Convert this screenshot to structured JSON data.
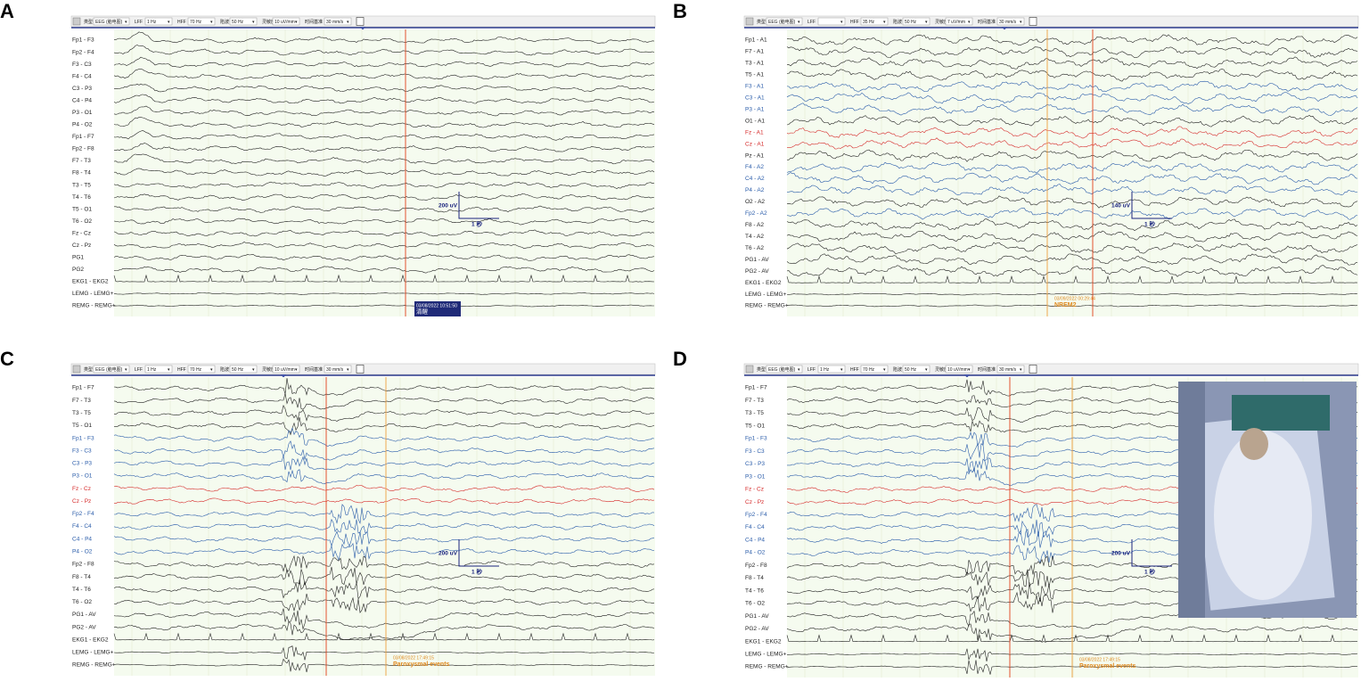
{
  "panels": [
    {
      "letter": "A",
      "toolbar": [
        {
          "label": "类型",
          "value": "EEG (脑电图)"
        },
        {
          "label": "LFF",
          "value": "1 Hz"
        },
        {
          "label": "HFF",
          "value": "70 Hz"
        },
        {
          "label": "陷波",
          "value": "50 Hz"
        },
        {
          "label": "灵敏度",
          "value": "10 uV/mm"
        },
        {
          "label": "时间基准",
          "value": "30 mm/s"
        }
      ],
      "channels": [
        {
          "label": "Fp1 - F3",
          "color": "#222"
        },
        {
          "label": "Fp2 - F4",
          "color": "#222"
        },
        {
          "label": "F3 - C3",
          "color": "#222"
        },
        {
          "label": "F4 - C4",
          "color": "#222"
        },
        {
          "label": "C3 - P3",
          "color": "#222"
        },
        {
          "label": "C4 - P4",
          "color": "#222"
        },
        {
          "label": "P3 - O1",
          "color": "#222"
        },
        {
          "label": "P4 - O2",
          "color": "#222"
        },
        {
          "label": "Fp1 - F7",
          "color": "#222"
        },
        {
          "label": "Fp2 - F8",
          "color": "#222"
        },
        {
          "label": "F7 - T3",
          "color": "#222"
        },
        {
          "label": "F8 - T4",
          "color": "#222"
        },
        {
          "label": "T3 - T5",
          "color": "#222"
        },
        {
          "label": "T4 - T6",
          "color": "#222"
        },
        {
          "label": "T5 - O1",
          "color": "#222"
        },
        {
          "label": "T6 - O2",
          "color": "#222"
        },
        {
          "label": "Fz - Cz",
          "color": "#222"
        },
        {
          "label": "Cz - Pz",
          "color": "#222"
        },
        {
          "label": "PG1",
          "color": "#222"
        },
        {
          "label": "PG2",
          "color": "#222"
        },
        {
          "label": "EKG1 - EKG2",
          "color": "#222"
        },
        {
          "label": "LEMG - LEMG+",
          "color": "#222"
        },
        {
          "label": "REMG - REMG+",
          "color": "#222"
        }
      ],
      "scale": {
        "amplitude": "200 uV",
        "time": "1 秒"
      },
      "event": {
        "time": "03/08/2022 10:51:50",
        "label": "清醒",
        "style": "box"
      }
    },
    {
      "letter": "B",
      "toolbar": [
        {
          "label": "类型",
          "value": "EEG (脑电图)"
        },
        {
          "label": "LFF"
        },
        {
          "label": "HFF",
          "value": "35 Hz"
        },
        {
          "label": "陷波",
          "value": "50 Hz"
        },
        {
          "label": "灵敏度",
          "value": "7 uV/mm"
        },
        {
          "label": "时间基准",
          "value": "30 mm/s"
        }
      ],
      "channels": [
        {
          "label": "Fp1 - A1",
          "color": "#222"
        },
        {
          "label": "F7 - A1",
          "color": "#222"
        },
        {
          "label": "T3 - A1",
          "color": "#222"
        },
        {
          "label": "T5 - A1",
          "color": "#222"
        },
        {
          "label": "F3 - A1",
          "color": "#2a5caa"
        },
        {
          "label": "C3 - A1",
          "color": "#2a5caa"
        },
        {
          "label": "P3 - A1",
          "color": "#2a5caa"
        },
        {
          "label": "O1 - A1",
          "color": "#222"
        },
        {
          "label": "Fz - A1",
          "color": "#d62b2b"
        },
        {
          "label": "Cz - A1",
          "color": "#d62b2b"
        },
        {
          "label": "Pz - A1",
          "color": "#222"
        },
        {
          "label": "F4 - A2",
          "color": "#2a5caa"
        },
        {
          "label": "C4 - A2",
          "color": "#2a5caa"
        },
        {
          "label": "P4 - A2",
          "color": "#2a5caa"
        },
        {
          "label": "O2 - A2",
          "color": "#222"
        },
        {
          "label": "Fp2 - A2",
          "color": "#2a5caa"
        },
        {
          "label": "F8 - A2",
          "color": "#222"
        },
        {
          "label": "T4 - A2",
          "color": "#222"
        },
        {
          "label": "T6 - A2",
          "color": "#222"
        },
        {
          "label": "PG1 - AV",
          "color": "#222"
        },
        {
          "label": "PG2 - AV",
          "color": "#222"
        },
        {
          "label": "EKG1 - EKG2",
          "color": "#222"
        },
        {
          "label": "LEMG - LEMG+",
          "color": "#222"
        },
        {
          "label": "REMG - REMG+",
          "color": "#222"
        }
      ],
      "scale": {
        "amplitude": "140 uV",
        "time": "1 秒"
      },
      "event": {
        "time": "03/09/2022 00:29:44",
        "label": "NREM2",
        "style": "text"
      }
    },
    {
      "letter": "C",
      "toolbar": [
        {
          "label": "类型",
          "value": "EEG (脑电图)"
        },
        {
          "label": "LFF",
          "value": "1 Hz"
        },
        {
          "label": "HFF",
          "value": "70 Hz"
        },
        {
          "label": "陷波",
          "value": "50 Hz"
        },
        {
          "label": "灵敏度",
          "value": "10 uV/mm"
        },
        {
          "label": "时间基准",
          "value": "30 mm/s"
        }
      ],
      "channels": [
        {
          "label": "Fp1 - F7",
          "color": "#222"
        },
        {
          "label": "F7 - T3",
          "color": "#222"
        },
        {
          "label": "T3 - T5",
          "color": "#222"
        },
        {
          "label": "T5 - O1",
          "color": "#222"
        },
        {
          "label": "Fp1 - F3",
          "color": "#2a5caa"
        },
        {
          "label": "F3 - C3",
          "color": "#2a5caa"
        },
        {
          "label": "C3 - P3",
          "color": "#2a5caa"
        },
        {
          "label": "P3 - O1",
          "color": "#2a5caa"
        },
        {
          "label": "Fz - Cz",
          "color": "#d62b2b"
        },
        {
          "label": "Cz - Pz",
          "color": "#d62b2b"
        },
        {
          "label": "Fp2 - F4",
          "color": "#2a5caa"
        },
        {
          "label": "F4 - C4",
          "color": "#2a5caa"
        },
        {
          "label": "C4 - P4",
          "color": "#2a5caa"
        },
        {
          "label": "P4 - O2",
          "color": "#2a5caa"
        },
        {
          "label": "Fp2 - F8",
          "color": "#222"
        },
        {
          "label": "F8 - T4",
          "color": "#222"
        },
        {
          "label": "T4 - T6",
          "color": "#222"
        },
        {
          "label": "T6 - O2",
          "color": "#222"
        },
        {
          "label": "PG1 - AV",
          "color": "#222"
        },
        {
          "label": "PG2 - AV",
          "color": "#222"
        },
        {
          "label": "EKG1 - EKG2",
          "color": "#222"
        },
        {
          "label": "LEMG - LEMG+",
          "color": "#222"
        },
        {
          "label": "REMG - REMG+",
          "color": "#222"
        }
      ],
      "scale": {
        "amplitude": "200 uV",
        "time": "1 秒"
      },
      "event": {
        "time": "03/08/2022 17:49:15",
        "label": "Paroxysmal events",
        "style": "text"
      }
    },
    {
      "letter": "D",
      "toolbar": [
        {
          "label": "类型",
          "value": "EEG (脑电图)"
        },
        {
          "label": "LFF",
          "value": "1 Hz"
        },
        {
          "label": "HFF",
          "value": "70 Hz"
        },
        {
          "label": "陷波",
          "value": "50 Hz"
        },
        {
          "label": "灵敏度",
          "value": "10 uV/mm"
        },
        {
          "label": "时间基准",
          "value": "30 mm/s"
        }
      ],
      "channels": [
        {
          "label": "Fp1 - F7",
          "color": "#222"
        },
        {
          "label": "F7 - T3",
          "color": "#222"
        },
        {
          "label": "T3 - T5",
          "color": "#222"
        },
        {
          "label": "T5 - O1",
          "color": "#222"
        },
        {
          "label": "Fp1 - F3",
          "color": "#2a5caa"
        },
        {
          "label": "F3 - C3",
          "color": "#2a5caa"
        },
        {
          "label": "C3 - P3",
          "color": "#2a5caa"
        },
        {
          "label": "P3 - O1",
          "color": "#2a5caa"
        },
        {
          "label": "Fz - Cz",
          "color": "#d62b2b"
        },
        {
          "label": "Cz - Pz",
          "color": "#d62b2b"
        },
        {
          "label": "Fp2 - F4",
          "color": "#2a5caa"
        },
        {
          "label": "F4 - C4",
          "color": "#2a5caa"
        },
        {
          "label": "C4 - P4",
          "color": "#2a5caa"
        },
        {
          "label": "P4 - O2",
          "color": "#2a5caa"
        },
        {
          "label": "Fp2 - F8",
          "color": "#222"
        },
        {
          "label": "F8 - T4",
          "color": "#222"
        },
        {
          "label": "T4 - T6",
          "color": "#222"
        },
        {
          "label": "T6 - O2",
          "color": "#222"
        },
        {
          "label": "PG1 - AV",
          "color": "#222"
        },
        {
          "label": "PG2 - AV",
          "color": "#222"
        },
        {
          "label": "EKG1 - EKG2",
          "color": "#222"
        },
        {
          "label": "LEMG - LEMG+",
          "color": "#222"
        },
        {
          "label": "REMG - REMG+",
          "color": "#222"
        }
      ],
      "scale": {
        "amplitude": "200 uV",
        "time": "1 秒"
      },
      "event": {
        "time": "03/08/2022 17:49:15",
        "label": "Paroxysmal events",
        "style": "text"
      }
    }
  ]
}
